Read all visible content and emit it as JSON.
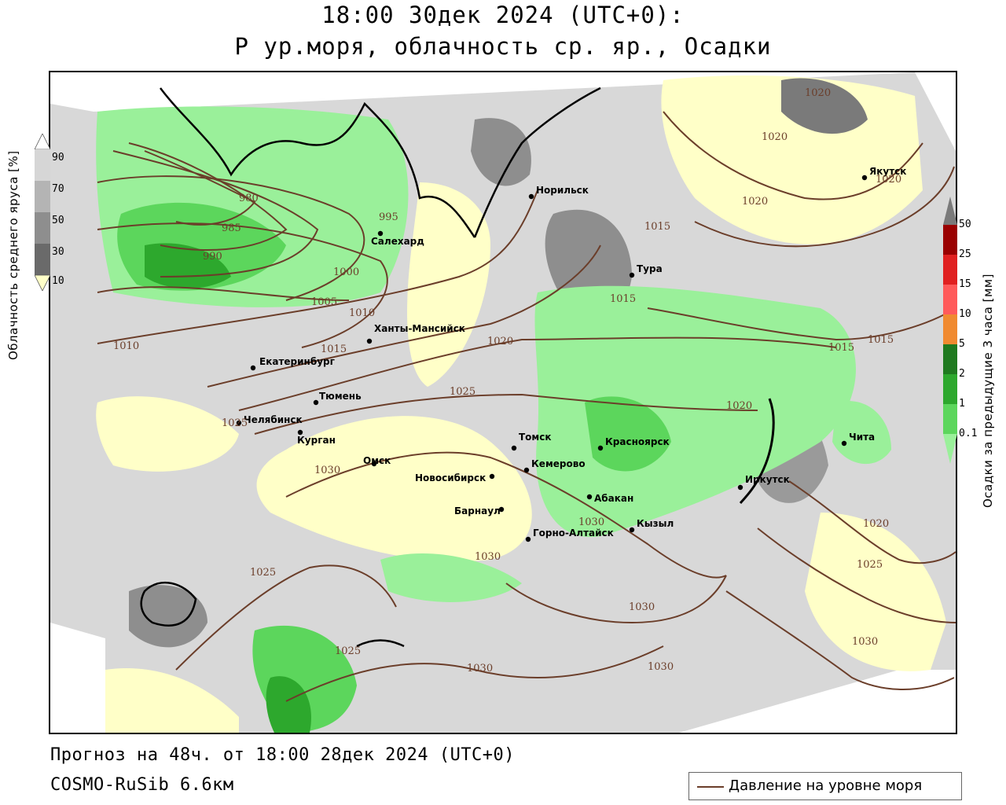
{
  "title": {
    "line1": "18:00 30дек 2024 (UTC+0):",
    "line2": "P ур.моря, облачность ср. яр., Осадки"
  },
  "footer": {
    "forecast": "Прогноз на 48ч. от 18:00 28дек 2024 (UTC+0)",
    "model": "COSMO-RuSib 6.6км"
  },
  "legend": {
    "pressure_label": "Давление на уровне моря",
    "pressure_color": "#6b3e2a"
  },
  "cloud_scale": {
    "label": "Облачность среднего яруса [%]",
    "ticks": [
      "90",
      "70",
      "50",
      "30",
      "10"
    ],
    "colors": [
      "#ffffff",
      "#d6d6d6",
      "#b4b4b4",
      "#8e8e8e",
      "#6a6a6a",
      "#ffffc8"
    ]
  },
  "precip_scale": {
    "label": "Осадки за предыдущие 3 часа [мм]",
    "ticks": [
      "50",
      "25",
      "15",
      "10",
      "5",
      "2",
      "1",
      "0.1"
    ],
    "colors": [
      "#9a0000",
      "#e02020",
      "#ff5a5a",
      "#f08a30",
      "#1f7a1f",
      "#2da82d",
      "#5cd65c",
      "#9af09a"
    ]
  },
  "cities": [
    {
      "name": "Норильск"
    },
    {
      "name": "Тура"
    },
    {
      "name": "Якутск"
    },
    {
      "name": "Салехард"
    },
    {
      "name": "Ханты-Мансийск"
    },
    {
      "name": "Екатеринбург"
    },
    {
      "name": "Тюмень"
    },
    {
      "name": "Челябинск"
    },
    {
      "name": "Курган"
    },
    {
      "name": "Омск"
    },
    {
      "name": "Новосибирск"
    },
    {
      "name": "Томск"
    },
    {
      "name": "Кемерово"
    },
    {
      "name": "Красноярск"
    },
    {
      "name": "Барнаул"
    },
    {
      "name": "Абакан"
    },
    {
      "name": "Горно-Алтайск"
    },
    {
      "name": "Кызыл"
    },
    {
      "name": "Иркутск"
    },
    {
      "name": "Чита"
    }
  ],
  "isobar_labels": [
    "1020",
    "1020",
    "1020",
    "1020",
    "1015",
    "1015",
    "1015",
    "1015",
    "980",
    "985",
    "990",
    "995",
    "1000",
    "1005",
    "1010",
    "1010",
    "1015",
    "1020",
    "1020",
    "1025",
    "1025",
    "1030",
    "1030",
    "1030",
    "1030",
    "1030",
    "1030",
    "1025",
    "1025",
    "1030",
    "1020",
    "1025"
  ]
}
